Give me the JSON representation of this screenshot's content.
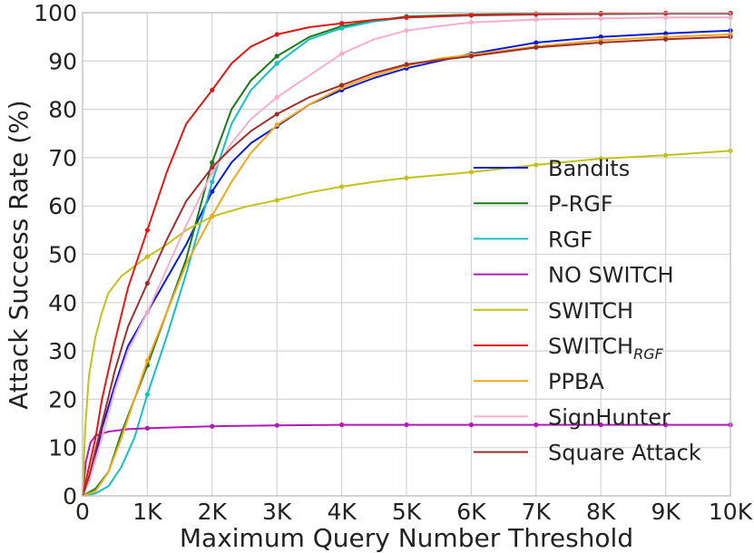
{
  "chart_data": {
    "type": "line",
    "title": "",
    "xlabel": "Maximum Query Number Threshold",
    "ylabel": "Attack Success Rate (%)",
    "xlim": [
      0,
      10000
    ],
    "ylim": [
      0,
      100
    ],
    "xticks": [
      0,
      1000,
      2000,
      3000,
      4000,
      5000,
      6000,
      7000,
      8000,
      9000,
      10000
    ],
    "xtick_labels": [
      "0",
      "1K",
      "2K",
      "3K",
      "4K",
      "5K",
      "6K",
      "7K",
      "8K",
      "9K",
      "10K"
    ],
    "yticks": [
      0,
      10,
      20,
      30,
      40,
      50,
      60,
      70,
      80,
      90,
      100
    ],
    "ytick_labels": [
      "0",
      "10",
      "20",
      "30",
      "40",
      "50",
      "60",
      "70",
      "80",
      "90",
      "100"
    ],
    "grid": true,
    "legend_position": "right",
    "series": [
      {
        "name": "Bandits",
        "label_main": "Bandits",
        "label_sub": "",
        "color": "#0a1ad6",
        "points": [
          [
            0,
            0
          ],
          [
            100,
            3
          ],
          [
            200,
            8
          ],
          [
            300,
            14
          ],
          [
            500,
            23
          ],
          [
            700,
            31
          ],
          [
            1000,
            38
          ],
          [
            1300,
            45
          ],
          [
            1600,
            52
          ],
          [
            2000,
            63
          ],
          [
            2300,
            69
          ],
          [
            2600,
            73
          ],
          [
            3000,
            76.5
          ],
          [
            3500,
            81
          ],
          [
            4000,
            84
          ],
          [
            4500,
            86.5
          ],
          [
            5000,
            88.5
          ],
          [
            5500,
            90
          ],
          [
            6000,
            91.5
          ],
          [
            7000,
            93.8
          ],
          [
            8000,
            95
          ],
          [
            9000,
            95.7
          ],
          [
            10000,
            96.3
          ]
        ]
      },
      {
        "name": "P-RGF",
        "label_main": "P-RGF",
        "label_sub": "",
        "color": "#1a7a1a",
        "points": [
          [
            0,
            0
          ],
          [
            200,
            1.5
          ],
          [
            400,
            5
          ],
          [
            600,
            13
          ],
          [
            800,
            20
          ],
          [
            1000,
            27
          ],
          [
            1300,
            38
          ],
          [
            1600,
            49
          ],
          [
            2000,
            69
          ],
          [
            2300,
            80
          ],
          [
            2600,
            86
          ],
          [
            3000,
            91
          ],
          [
            3500,
            95
          ],
          [
            4000,
            97.2
          ],
          [
            4500,
            98.3
          ],
          [
            5000,
            99.2
          ],
          [
            6000,
            99.6
          ],
          [
            7000,
            99.8
          ],
          [
            8000,
            99.9
          ],
          [
            9000,
            99.9
          ],
          [
            10000,
            99.9
          ]
        ]
      },
      {
        "name": "RGF",
        "label_main": "RGF",
        "label_sub": "",
        "color": "#17c0c0",
        "points": [
          [
            0,
            0
          ],
          [
            200,
            0.5
          ],
          [
            400,
            2
          ],
          [
            600,
            6
          ],
          [
            800,
            12
          ],
          [
            1000,
            21
          ],
          [
            1300,
            33
          ],
          [
            1600,
            46
          ],
          [
            2000,
            65
          ],
          [
            2300,
            77
          ],
          [
            2600,
            84
          ],
          [
            3000,
            89.5
          ],
          [
            3500,
            94.5
          ],
          [
            4000,
            96.8
          ],
          [
            4500,
            98.2
          ],
          [
            5000,
            99
          ],
          [
            6000,
            99.4
          ],
          [
            7000,
            99.6
          ],
          [
            8000,
            99.7
          ],
          [
            9000,
            99.8
          ],
          [
            10000,
            99.8
          ]
        ]
      },
      {
        "name": "NO SWITCH",
        "label_main": "NO SWITCH",
        "label_sub": "",
        "color": "#b01ab8",
        "points": [
          [
            0,
            0
          ],
          [
            50,
            7
          ],
          [
            120,
            11
          ],
          [
            200,
            12.5
          ],
          [
            400,
            13.3
          ],
          [
            700,
            13.8
          ],
          [
            1000,
            14
          ],
          [
            1500,
            14.2
          ],
          [
            2000,
            14.4
          ],
          [
            3000,
            14.6
          ],
          [
            4000,
            14.7
          ],
          [
            5000,
            14.7
          ],
          [
            6000,
            14.7
          ],
          [
            7000,
            14.7
          ],
          [
            8000,
            14.7
          ],
          [
            9000,
            14.7
          ],
          [
            10000,
            14.7
          ]
        ]
      },
      {
        "name": "SWITCH",
        "label_main": "SWITCH",
        "label_sub": "",
        "color": "#c2c21a",
        "points": [
          [
            0,
            0
          ],
          [
            40,
            14
          ],
          [
            100,
            25
          ],
          [
            200,
            33
          ],
          [
            300,
            38
          ],
          [
            400,
            42
          ],
          [
            600,
            45.5
          ],
          [
            800,
            47.5
          ],
          [
            1000,
            49.5
          ],
          [
            1300,
            52
          ],
          [
            1600,
            55
          ],
          [
            2000,
            57.8
          ],
          [
            2500,
            59.8
          ],
          [
            3000,
            61.2
          ],
          [
            3500,
            62.8
          ],
          [
            4000,
            64
          ],
          [
            4500,
            65
          ],
          [
            5000,
            65.8
          ],
          [
            6000,
            67
          ],
          [
            7000,
            68.5
          ],
          [
            8000,
            69.8
          ],
          [
            9000,
            70.5
          ],
          [
            10000,
            71.4
          ]
        ]
      },
      {
        "name": "SWITCH_RGF",
        "label_main": "SWITCH",
        "label_sub": "RGF",
        "color": "#e01818",
        "points": [
          [
            0,
            0
          ],
          [
            100,
            6
          ],
          [
            200,
            12
          ],
          [
            300,
            20
          ],
          [
            500,
            32
          ],
          [
            700,
            43
          ],
          [
            1000,
            55
          ],
          [
            1300,
            67
          ],
          [
            1600,
            77
          ],
          [
            2000,
            84
          ],
          [
            2300,
            89.5
          ],
          [
            2600,
            93
          ],
          [
            3000,
            95.5
          ],
          [
            3500,
            97
          ],
          [
            4000,
            97.8
          ],
          [
            4500,
            98.5
          ],
          [
            5000,
            99
          ],
          [
            6000,
            99.5
          ],
          [
            7000,
            99.7
          ],
          [
            8000,
            99.8
          ],
          [
            9000,
            99.9
          ],
          [
            10000,
            99.9
          ]
        ]
      },
      {
        "name": "PPBA",
        "label_main": "PPBA",
        "label_sub": "",
        "color": "#f2a81d",
        "points": [
          [
            0,
            0
          ],
          [
            200,
            1
          ],
          [
            400,
            5
          ],
          [
            600,
            12
          ],
          [
            800,
            20
          ],
          [
            1000,
            28
          ],
          [
            1300,
            38
          ],
          [
            1600,
            48
          ],
          [
            2000,
            58
          ],
          [
            2300,
            65
          ],
          [
            2600,
            71
          ],
          [
            3000,
            76.8
          ],
          [
            3500,
            81
          ],
          [
            4000,
            84.5
          ],
          [
            4500,
            87
          ],
          [
            5000,
            89
          ],
          [
            5500,
            90.5
          ],
          [
            6000,
            91.3
          ],
          [
            7000,
            93
          ],
          [
            8000,
            94.3
          ],
          [
            9000,
            95
          ],
          [
            10000,
            95.5
          ]
        ]
      },
      {
        "name": "SignHunter",
        "label_main": "SignHunter",
        "label_sub": "",
        "color": "#f5aecb",
        "points": [
          [
            0,
            0
          ],
          [
            100,
            3
          ],
          [
            300,
            12
          ],
          [
            500,
            22
          ],
          [
            700,
            30
          ],
          [
            1000,
            38
          ],
          [
            1300,
            47
          ],
          [
            1600,
            56
          ],
          [
            2000,
            67
          ],
          [
            2300,
            73
          ],
          [
            2600,
            78
          ],
          [
            3000,
            82.5
          ],
          [
            3500,
            87
          ],
          [
            4000,
            91.5
          ],
          [
            4500,
            94.5
          ],
          [
            5000,
            96.3
          ],
          [
            5500,
            97.2
          ],
          [
            6000,
            98
          ],
          [
            7000,
            98.6
          ],
          [
            8000,
            98.8
          ],
          [
            9000,
            99
          ],
          [
            10000,
            99
          ]
        ]
      },
      {
        "name": "Square Attack",
        "label_main": "Square Attack",
        "label_sub": "",
        "color": "#9e2f2f",
        "points": [
          [
            0,
            0
          ],
          [
            100,
            4
          ],
          [
            300,
            15
          ],
          [
            500,
            26
          ],
          [
            700,
            35
          ],
          [
            1000,
            44
          ],
          [
            1300,
            53
          ],
          [
            1600,
            61
          ],
          [
            2000,
            68
          ],
          [
            2300,
            72
          ],
          [
            2600,
            75.5
          ],
          [
            3000,
            79
          ],
          [
            3500,
            82.5
          ],
          [
            4000,
            85
          ],
          [
            4500,
            87.5
          ],
          [
            5000,
            89.3
          ],
          [
            5500,
            90.2
          ],
          [
            6000,
            91
          ],
          [
            7000,
            92.8
          ],
          [
            8000,
            93.8
          ],
          [
            9000,
            94.5
          ],
          [
            10000,
            95
          ]
        ]
      }
    ]
  }
}
